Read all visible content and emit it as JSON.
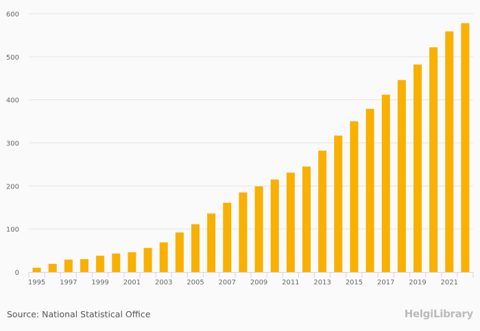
{
  "chart_data": {
    "type": "bar",
    "title": "",
    "xlabel": "",
    "ylabel": "",
    "ylim": [
      0,
      600
    ],
    "yticks": [
      0,
      100,
      200,
      300,
      400,
      500,
      600
    ],
    "grid": true,
    "bar_color": "#f9b000",
    "categories": [
      "1995",
      "1996",
      "1997",
      "1998",
      "1999",
      "2000",
      "2001",
      "2002",
      "2003",
      "2004",
      "2005",
      "2006",
      "2007",
      "2008",
      "2009",
      "2010",
      "2011",
      "2012",
      "2013",
      "2014",
      "2015",
      "2016",
      "2017",
      "2018",
      "2019",
      "2020",
      "2021",
      "2022"
    ],
    "xtick_labels": [
      "1995",
      "1997",
      "1999",
      "2001",
      "2003",
      "2005",
      "2007",
      "2009",
      "2011",
      "2013",
      "2015",
      "2017",
      "2019",
      "2021"
    ],
    "values": [
      10,
      19,
      29,
      30,
      38,
      43,
      46,
      56,
      69,
      92,
      111,
      136,
      161,
      185,
      199,
      215,
      231,
      245,
      282,
      317,
      350,
      379,
      412,
      446,
      482,
      522,
      559,
      578
    ]
  },
  "footer": {
    "source": "Source: National Statistical Office",
    "logo": "HelgiLibrary"
  }
}
